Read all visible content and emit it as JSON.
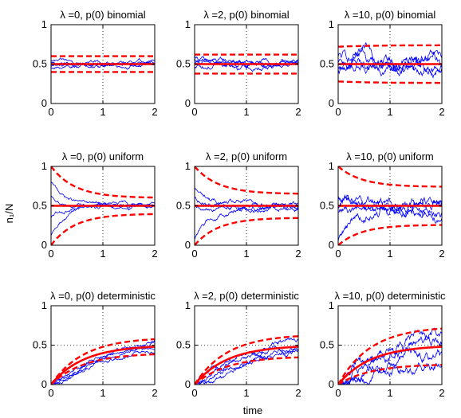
{
  "figure": {
    "ylabel": "n₁/N",
    "xlabel": "time"
  },
  "colors": {
    "mean_and_bounds": "#ff0000",
    "trajectories": "#0000ff",
    "axes": "#000000",
    "grid": "#000000"
  },
  "chart_data": [
    {
      "type": "line",
      "title": "λ =0, p(0) binomial",
      "xlim": [
        0,
        2
      ],
      "ylim": [
        0,
        1
      ],
      "xticks": [
        "0",
        "1",
        "2"
      ],
      "yticks": [
        "0",
        "0.5",
        "1"
      ],
      "grid": "dotted at x=1 and y=0.5",
      "init": "binomial",
      "mean_start": 0.5,
      "mean_end": 0.5,
      "band_start": 0.1,
      "band_end": 0.1,
      "rate": 1.5,
      "trajectory_starts": [
        0.52,
        0.48,
        0.55,
        0.45
      ],
      "trajectory_noise": 0.04
    },
    {
      "type": "line",
      "title": "λ =2, p(0) binomial",
      "xlim": [
        0,
        2
      ],
      "ylim": [
        0,
        1
      ],
      "xticks": [
        "0",
        "1",
        "2"
      ],
      "yticks": [
        "0",
        "0.5",
        "1"
      ],
      "grid": "dotted at x=1 and y=0.5",
      "init": "binomial",
      "mean_start": 0.5,
      "mean_end": 0.5,
      "band_start": 0.12,
      "band_end": 0.12,
      "rate": 1.5,
      "trajectory_starts": [
        0.55,
        0.45,
        0.5,
        0.58
      ],
      "trajectory_noise": 0.06
    },
    {
      "type": "line",
      "title": "λ =10, p(0) binomial",
      "xlim": [
        0,
        2
      ],
      "ylim": [
        0,
        1
      ],
      "xticks": [
        "0",
        "1",
        "2"
      ],
      "yticks": [
        "0",
        "0.5",
        "1"
      ],
      "grid": "dotted at x=1 and y=0.5",
      "init": "binomial",
      "mean_start": 0.5,
      "mean_end": 0.5,
      "band_start": 0.22,
      "band_end": 0.24,
      "rate": 1.5,
      "trajectory_starts": [
        0.6,
        0.4,
        0.55,
        0.45
      ],
      "trajectory_noise": 0.13
    },
    {
      "type": "line",
      "title": "λ =0, p(0) uniform",
      "xlim": [
        0,
        2
      ],
      "ylim": [
        0,
        1
      ],
      "xticks": [
        "0",
        "1",
        "2"
      ],
      "yticks": [
        "0",
        "0.5",
        "1"
      ],
      "grid": "dotted at x=1 and y=0.5",
      "init": "uniform",
      "mean_start": 0.5,
      "mean_end": 0.5,
      "band_start": 0.5,
      "band_end": 0.1,
      "rate": 2.2,
      "trajectory_starts": [
        0.8,
        0.62,
        0.35,
        0.12
      ],
      "trajectory_noise": 0.04
    },
    {
      "type": "line",
      "title": "λ =2, p(0) uniform",
      "xlim": [
        0,
        2
      ],
      "ylim": [
        0,
        1
      ],
      "xticks": [
        "0",
        "1",
        "2"
      ],
      "yticks": [
        "0",
        "0.5",
        "1"
      ],
      "grid": "dotted at x=1 and y=0.5",
      "init": "uniform",
      "mean_start": 0.5,
      "mean_end": 0.5,
      "band_start": 0.5,
      "band_end": 0.15,
      "rate": 2.2,
      "trajectory_starts": [
        0.72,
        0.6,
        0.52,
        0.08
      ],
      "trajectory_noise": 0.06
    },
    {
      "type": "line",
      "title": "λ =10, p(0) uniform",
      "xlim": [
        0,
        2
      ],
      "ylim": [
        0,
        1
      ],
      "xticks": [
        "0",
        "1",
        "2"
      ],
      "yticks": [
        "0",
        "0.5",
        "1"
      ],
      "grid": "dotted at x=1 and y=0.5",
      "init": "uniform",
      "mean_start": 0.5,
      "mean_end": 0.5,
      "band_start": 0.5,
      "band_end": 0.24,
      "rate": 2.2,
      "trajectory_starts": [
        0.58,
        0.5,
        0.42,
        0.05
      ],
      "trajectory_noise": 0.12
    },
    {
      "type": "line",
      "title": "λ =0, p(0) deterministic",
      "xlim": [
        0,
        2
      ],
      "ylim": [
        0,
        1
      ],
      "xticks": [
        "0",
        "1",
        "2"
      ],
      "yticks": [
        "0",
        "0.5",
        "1"
      ],
      "grid": "dotted at x=1 and y=0.5",
      "init": "deterministic",
      "mean_start": 0.0,
      "mean_end": 0.5,
      "band_start": 0.0,
      "band_end": 0.1,
      "rate": 1.6,
      "trajectory_starts": [
        0,
        0,
        0,
        0
      ],
      "trajectory_noise": 0.04
    },
    {
      "type": "line",
      "title": "λ =2, p(0) deterministic",
      "xlim": [
        0,
        2
      ],
      "ylim": [
        0,
        1
      ],
      "xticks": [
        "0",
        "1",
        "2"
      ],
      "yticks": [
        "0",
        "0.5",
        "1"
      ],
      "grid": "dotted at x=1 and y=0.5",
      "init": "deterministic",
      "mean_start": 0.0,
      "mean_end": 0.5,
      "band_start": 0.0,
      "band_end": 0.14,
      "rate": 1.6,
      "trajectory_starts": [
        0,
        0,
        0,
        0
      ],
      "trajectory_noise": 0.06
    },
    {
      "type": "line",
      "title": "λ =10, p(0) deterministic",
      "xlim": [
        0,
        2
      ],
      "ylim": [
        0,
        1
      ],
      "xticks": [
        "0",
        "1",
        "2"
      ],
      "yticks": [
        "0",
        "0.5",
        "1"
      ],
      "grid": "dotted at x=1 and y=0.5",
      "init": "deterministic",
      "mean_start": 0.0,
      "mean_end": 0.5,
      "band_start": 0.0,
      "band_end": 0.24,
      "rate": 1.6,
      "trajectory_starts": [
        0,
        0,
        0,
        0
      ],
      "trajectory_noise": 0.12
    }
  ]
}
